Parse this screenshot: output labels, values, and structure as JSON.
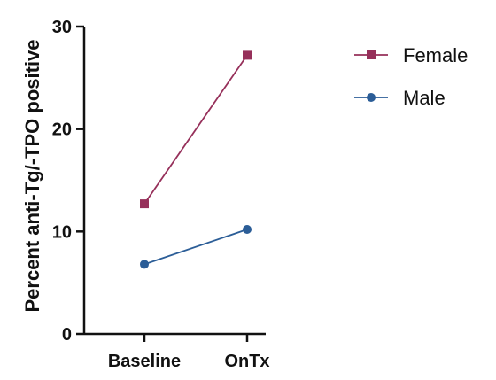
{
  "chart_data": {
    "type": "line",
    "title": "",
    "xlabel": "",
    "ylabel": "Percent anti-Tg/-TPO positive",
    "categories": [
      "Baseline",
      "OnTx"
    ],
    "ylim": [
      0,
      30
    ],
    "yticks": [
      0,
      10,
      20,
      30
    ],
    "grid": false,
    "legend_position": "right",
    "series": [
      {
        "name": "Female",
        "values": [
          12.7,
          27.2
        ],
        "color": "#96305a",
        "marker": "square"
      },
      {
        "name": "Male",
        "values": [
          6.8,
          10.2
        ],
        "color": "#2b5d97",
        "marker": "circle"
      }
    ]
  }
}
